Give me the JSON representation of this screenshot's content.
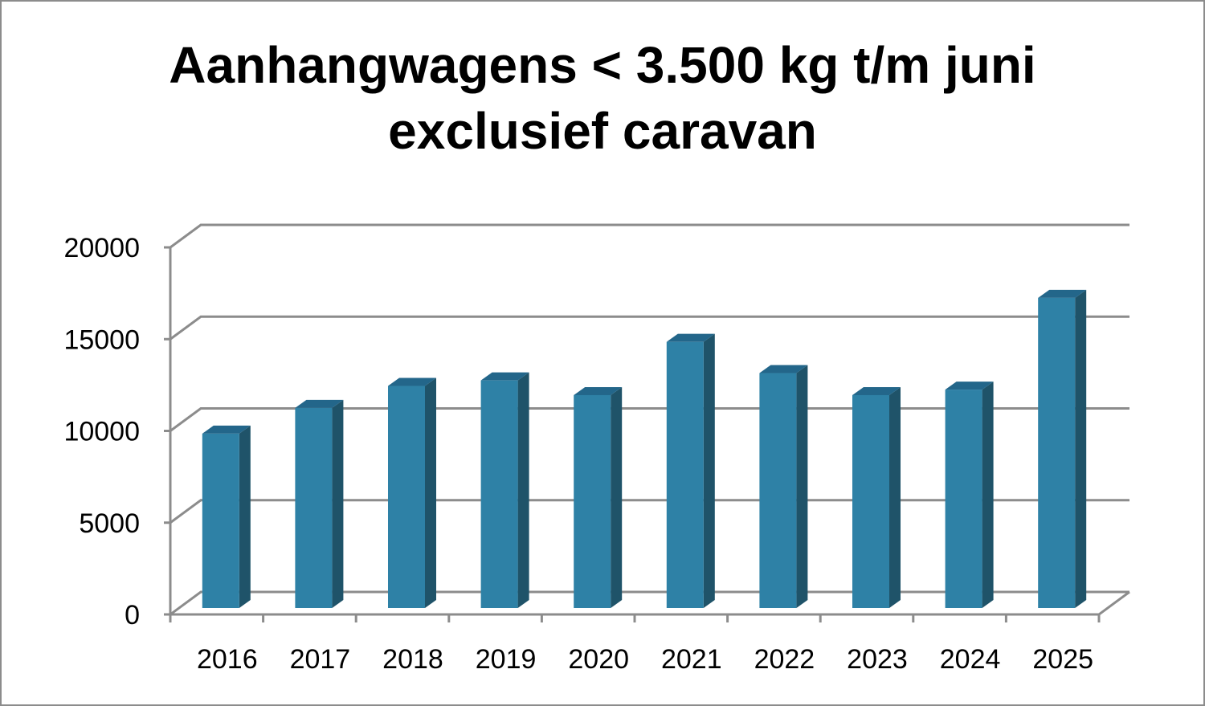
{
  "chart_data": {
    "type": "bar",
    "title_lines": [
      "Aanhangwagens < 3.500 kg t/m juni",
      "exclusief caravan"
    ],
    "xlabel": "",
    "ylabel": "",
    "categories": [
      "2016",
      "2017",
      "2018",
      "2019",
      "2020",
      "2021",
      "2022",
      "2023",
      "2024",
      "2025"
    ],
    "series": [
      {
        "values": [
          9500,
          10900,
          12100,
          12400,
          11600,
          14500,
          12800,
          11600,
          11900,
          16900
        ]
      }
    ],
    "y_ticks": [
      "0",
      "5000",
      "10000",
      "15000",
      "20000"
    ],
    "ylim": [
      0,
      20000
    ],
    "grid": true,
    "legend": "none",
    "style_3d": true,
    "colors": {
      "bar_front": "#2e81a6",
      "bar_side": "#1f5369",
      "bar_top": "#23668a",
      "gridline": "#8c8c8c"
    }
  }
}
